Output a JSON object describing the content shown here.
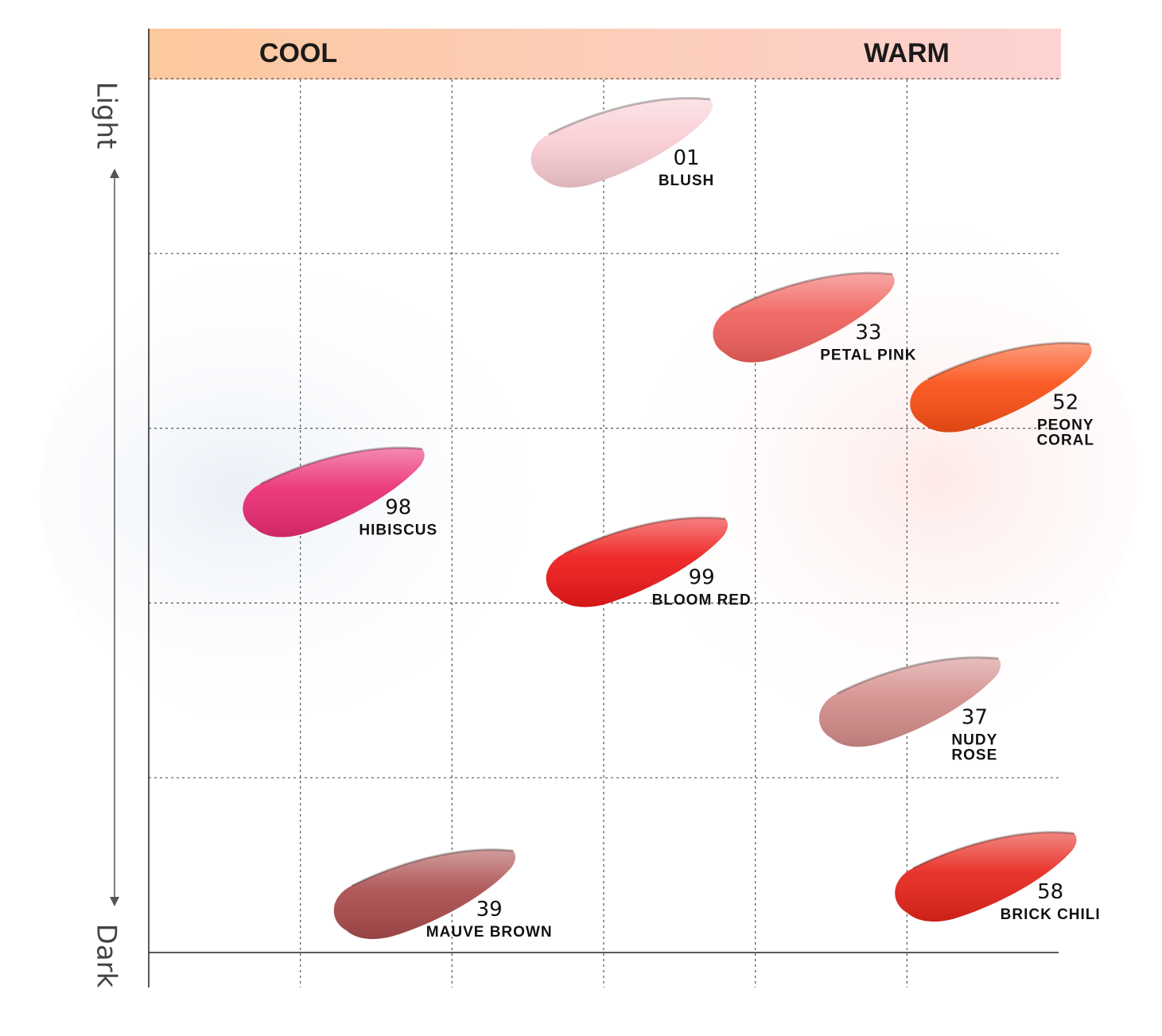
{
  "chart_data": {
    "type": "scatter",
    "title": "",
    "x_axis": {
      "left_label": "COOL",
      "right_label": "WARM",
      "range": [
        0,
        6
      ]
    },
    "y_axis": {
      "top_label": "Light",
      "bottom_label": "Dark",
      "range": [
        0,
        5
      ]
    },
    "grid": true,
    "points": [
      {
        "code": "01",
        "name": "BLUSH",
        "x": 3.1,
        "y": 4.6,
        "color": "#f9cdd3"
      },
      {
        "code": "33",
        "name": "PETAL PINK",
        "x": 4.3,
        "y": 3.6,
        "color": "#f0605c"
      },
      {
        "code": "52",
        "name": "PEONY CORAL",
        "name_lines": [
          "PEONY",
          "CORAL"
        ],
        "x": 5.6,
        "y": 3.2,
        "color": "#fa4f14"
      },
      {
        "code": "98",
        "name": "HIBISCUS",
        "name_lines": [
          "HIBISCUS"
        ],
        "x": 1.2,
        "y": 2.6,
        "color": "#ea2b72"
      },
      {
        "code": "99",
        "name": "BLOOM RED",
        "x": 3.2,
        "y": 2.2,
        "color": "#ee1818"
      },
      {
        "code": "37",
        "name": "NUDY ROSE",
        "name_lines": [
          "NUDY",
          "ROSE"
        ],
        "x": 5.0,
        "y": 1.4,
        "color": "#d38c8a"
      },
      {
        "code": "39",
        "name": "MAUVE BROWN",
        "x": 1.8,
        "y": 0.3,
        "color": "#aa4b4c"
      },
      {
        "code": "58",
        "name": "BRICK CHILI",
        "x": 5.5,
        "y": 0.4,
        "color": "#e6241a"
      }
    ]
  }
}
